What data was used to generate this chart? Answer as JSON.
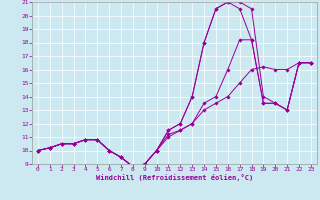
{
  "xlabel": "Windchill (Refroidissement éolien,°C)",
  "xlim": [
    -0.5,
    23.5
  ],
  "ylim": [
    9,
    21
  ],
  "xticks": [
    0,
    1,
    2,
    3,
    4,
    5,
    6,
    7,
    8,
    9,
    10,
    11,
    12,
    13,
    14,
    15,
    16,
    17,
    18,
    19,
    20,
    21,
    22,
    23
  ],
  "yticks": [
    9,
    10,
    11,
    12,
    13,
    14,
    15,
    16,
    17,
    18,
    19,
    20,
    21
  ],
  "line_color": "#990099",
  "bg_color": "#cce8f0",
  "grid_color": "#ffffff",
  "curves": [
    [
      10.0,
      10.2,
      10.5,
      10.5,
      10.8,
      10.8,
      10.0,
      9.5,
      8.8,
      9.0,
      10.0,
      11.0,
      11.5,
      12.0,
      13.0,
      13.5,
      14.0,
      15.0,
      16.0,
      16.2,
      16.0,
      16.0,
      16.5,
      16.5
    ],
    [
      10.0,
      10.2,
      10.5,
      10.5,
      10.8,
      10.8,
      10.0,
      9.5,
      8.8,
      9.0,
      10.0,
      11.5,
      12.0,
      14.0,
      18.0,
      20.5,
      21.0,
      21.0,
      20.5,
      14.0,
      13.5,
      13.0,
      16.5,
      16.5
    ],
    [
      10.0,
      10.2,
      10.5,
      10.5,
      10.8,
      10.8,
      10.0,
      9.5,
      8.8,
      9.0,
      10.0,
      11.5,
      12.0,
      14.0,
      18.0,
      20.5,
      21.0,
      20.5,
      18.2,
      13.5,
      13.5,
      13.0,
      16.5,
      16.5
    ],
    [
      10.0,
      10.2,
      10.5,
      10.5,
      10.8,
      10.8,
      10.0,
      9.5,
      8.8,
      9.0,
      10.0,
      11.2,
      11.5,
      12.0,
      13.5,
      14.0,
      16.0,
      18.2,
      18.2,
      13.5,
      13.5,
      13.0,
      16.5,
      16.5
    ]
  ]
}
